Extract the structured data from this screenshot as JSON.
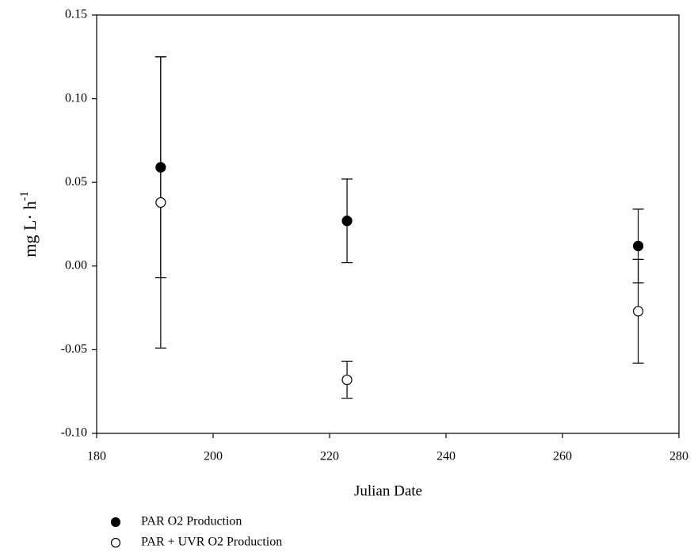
{
  "chart_data": {
    "type": "scatter",
    "xlabel": "Julian Date",
    "ylabel": "mg L· h",
    "ylabel_sup": "-1",
    "xlim": [
      180,
      280
    ],
    "xticks": [
      180,
      200,
      220,
      240,
      260,
      280
    ],
    "ylim": [
      -0.1,
      0.15
    ],
    "yticks": [
      {
        "value": -0.1,
        "label": "-0.10"
      },
      -0.05,
      {
        "value": 0,
        "label": "0.00"
      },
      0.05,
      {
        "value": 0.1,
        "label": "0.10"
      },
      0.15
    ],
    "legend": "bottom-left",
    "series": [
      {
        "name": "PAR O2 Production",
        "color": "#000000",
        "filled": true,
        "x": [
          191,
          223,
          273
        ],
        "values": [
          0.059,
          0.027,
          0.012
        ],
        "errors": [
          0.066,
          0.025,
          0.022
        ]
      },
      {
        "name": "PAR + UVR  O2 Production",
        "color": "#000000",
        "filled": false,
        "x": [
          191,
          223,
          273
        ],
        "values": [
          0.038,
          -0.068,
          -0.027
        ],
        "errors": [
          0.087,
          0.011,
          0.031
        ]
      }
    ]
  }
}
